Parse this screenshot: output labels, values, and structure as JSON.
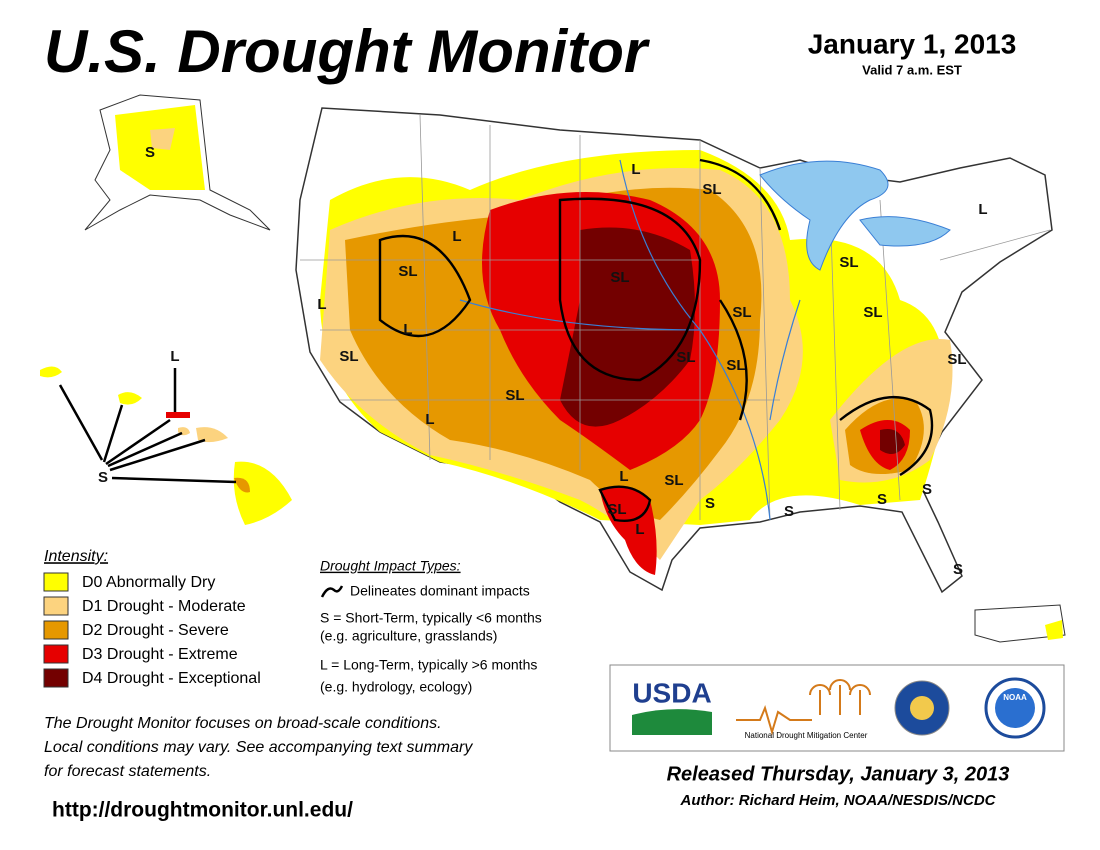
{
  "header": {
    "title": "U.S. Drought Monitor",
    "date": "January 1, 2013",
    "valid": "Valid 7 a.m. EST"
  },
  "map_labels": [
    "S",
    "L",
    "S",
    "L",
    "SL",
    "L",
    "L",
    "SL",
    "SL",
    "SL",
    "L",
    "L",
    "SL",
    "SL",
    "SL",
    "SL",
    "SL",
    "SL",
    "L",
    "L",
    "SL",
    "S",
    "SL",
    "L",
    "SL",
    "S",
    "S",
    "S",
    "S"
  ],
  "legend": {
    "title": "Intensity:",
    "items": [
      {
        "label": "D0 Abnormally Dry",
        "color": "#ffff00"
      },
      {
        "label": "D1 Drought - Moderate",
        "color": "#fcd37f"
      },
      {
        "label": "D2 Drought - Severe",
        "color": "#e69800"
      },
      {
        "label": "D3 Drought - Extreme",
        "color": "#e60000"
      },
      {
        "label": "D4 Drought - Exceptional",
        "color": "#730000"
      }
    ]
  },
  "impact_types": {
    "title": "Drought Impact Types:",
    "line": "Delineates dominant impacts",
    "short_term": "S = Short-Term, typically <6 months",
    "short_term_example": "(e.g. agriculture, grasslands)",
    "long_term": "L = Long-Term, typically >6 months",
    "long_term_example": "(e.g. hydrology, ecology)"
  },
  "note": [
    "The Drought Monitor focuses on broad-scale conditions.",
    "Local conditions may vary. See accompanying text summary",
    "for forecast statements."
  ],
  "url": "http://droughtmonitor.unl.edu/",
  "logos": {
    "usda": "USDA",
    "ndmc": "National Drought Mitigation Center",
    "noaa": "NOAA"
  },
  "footer": {
    "released": "Released Thursday, January 3, 2013",
    "author": "Author: Richard Heim, NOAA/NESDIS/NCDC"
  }
}
